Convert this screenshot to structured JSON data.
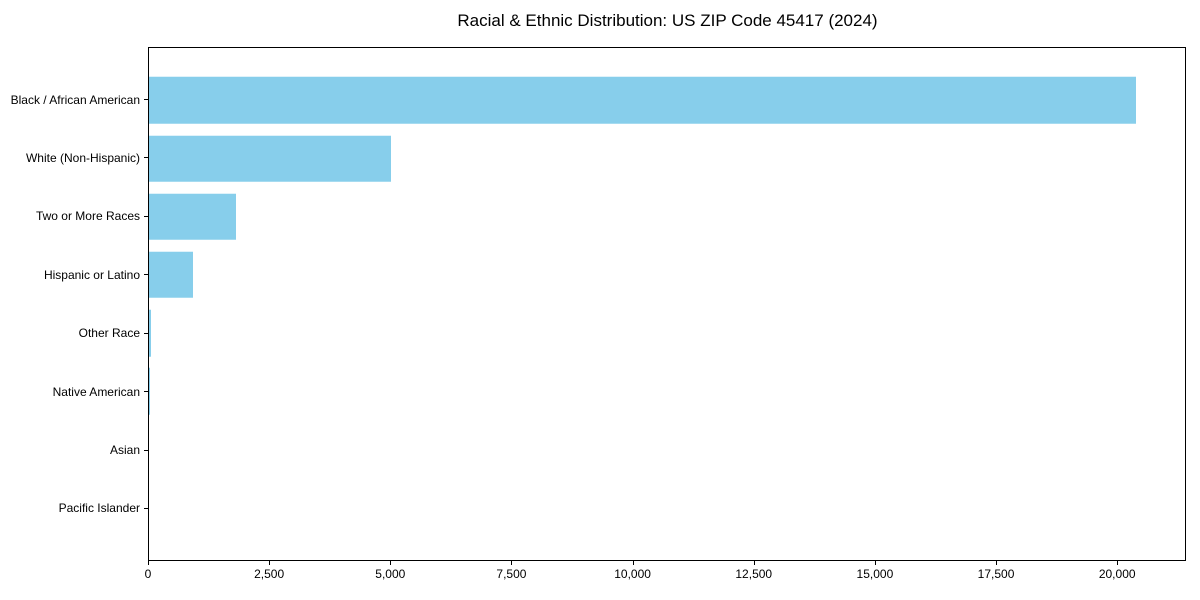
{
  "chart_data": {
    "type": "bar",
    "orientation": "horizontal",
    "title": "Racial & Ethnic Distribution: US ZIP Code 45417 (2024)",
    "xlabel": "",
    "ylabel": "",
    "categories": [
      "Black / African American",
      "White (Non-Hispanic)",
      "Two or More Races",
      "Hispanic or Latino",
      "Other Race",
      "Native American",
      "Asian",
      "Pacific Islander"
    ],
    "values": [
      20400,
      5000,
      1800,
      900,
      50,
      20,
      0,
      0
    ],
    "xlim": [
      0,
      21420
    ],
    "x_ticks": [
      0,
      2500,
      5000,
      7500,
      10000,
      12500,
      15000,
      17500,
      20000
    ],
    "x_tick_labels": [
      "0",
      "2,500",
      "5,000",
      "7,500",
      "10,000",
      "12,500",
      "15,000",
      "17,500",
      "20,000"
    ],
    "grid": false,
    "legend": false,
    "bar_color": "#87CEEB"
  },
  "colors": {
    "bar": "#87CEEB",
    "axis": "#000000",
    "text": "#000000",
    "background": "#FFFFFF"
  }
}
